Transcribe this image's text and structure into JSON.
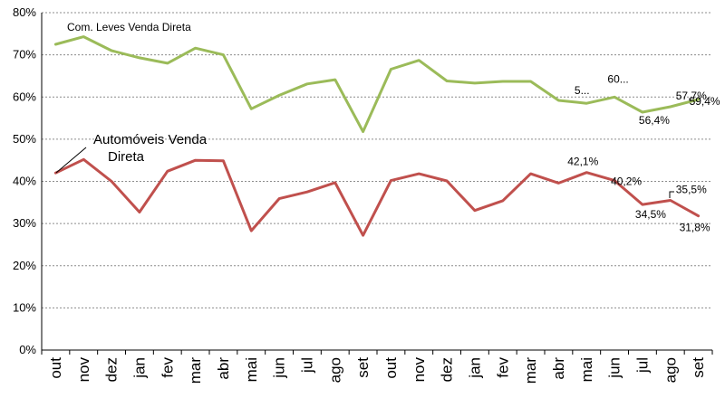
{
  "chart_data": {
    "type": "line",
    "title": "",
    "xlabel": "",
    "ylabel": "",
    "ylim": [
      0,
      80
    ],
    "yticks": [
      "0%",
      "10%",
      "20%",
      "30%",
      "40%",
      "50%",
      "60%",
      "70%",
      "80%"
    ],
    "grid": true,
    "categories": [
      "out",
      "nov",
      "dez",
      "jan",
      "fev",
      "mar",
      "abr",
      "mai",
      "jun",
      "jul",
      "ago",
      "set",
      "out",
      "nov",
      "dez",
      "jan",
      "fev",
      "mar",
      "abr",
      "mai",
      "jun",
      "jul",
      "ago",
      "set"
    ],
    "series": [
      {
        "name": "Com. Leves Venda Direta",
        "color": "#9bbb59",
        "values": [
          72.5,
          74.3,
          71.0,
          69.3,
          68.0,
          71.6,
          70.0,
          57.2,
          60.4,
          63.1,
          64.1,
          51.8,
          66.6,
          68.7,
          63.8,
          63.3,
          63.7,
          63.7,
          59.2,
          58.5,
          60.0,
          56.4,
          57.7,
          59.4
        ],
        "data_labels": [
          {
            "index": 19,
            "text": "5..."
          },
          {
            "index": 20,
            "text": "60..."
          },
          {
            "index": 21,
            "text": "56,4%"
          },
          {
            "index": 22,
            "text": "57,7%"
          },
          {
            "index": 23,
            "text": "59,4%"
          }
        ]
      },
      {
        "name": "Automóveis Venda Direta",
        "color": "#c0504d",
        "values": [
          42.0,
          45.2,
          40.0,
          32.7,
          42.4,
          45.0,
          44.9,
          28.3,
          35.9,
          37.5,
          39.7,
          27.2,
          40.2,
          41.8,
          40.1,
          33.1,
          35.4,
          41.8,
          39.6,
          42.1,
          40.2,
          34.5,
          35.5,
          31.8
        ],
        "data_labels": [
          {
            "index": 19,
            "text": "42,1%"
          },
          {
            "index": 20,
            "text": "40,2%"
          },
          {
            "index": 21,
            "text": "34,5%"
          },
          {
            "index": 22,
            "text": "35,5%"
          },
          {
            "index": 23,
            "text": "31,8%"
          }
        ]
      }
    ]
  }
}
